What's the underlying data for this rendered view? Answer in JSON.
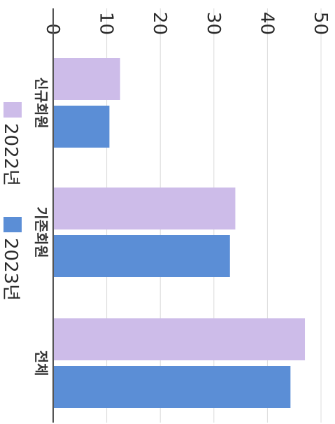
{
  "chart_data": {
    "type": "bar",
    "orientation": "vertical",
    "categories": [
      "신규회원",
      "기존회원",
      "전체"
    ],
    "series": [
      {
        "name": "2022년",
        "values": [
          12.5,
          34,
          47
        ],
        "color": "#cdbce9"
      },
      {
        "name": "2023년",
        "values": [
          10.5,
          33,
          44.3
        ],
        "color": "#5b8ed6"
      }
    ],
    "title": "",
    "xlabel": "",
    "ylabel": "",
    "ylim": [
      0,
      50
    ],
    "yticks": [
      "0",
      "10",
      "20",
      "30",
      "40",
      "50"
    ],
    "grid": true,
    "legend_position": "bottom",
    "image_rotation": "rotated 90 degrees clockwise"
  }
}
